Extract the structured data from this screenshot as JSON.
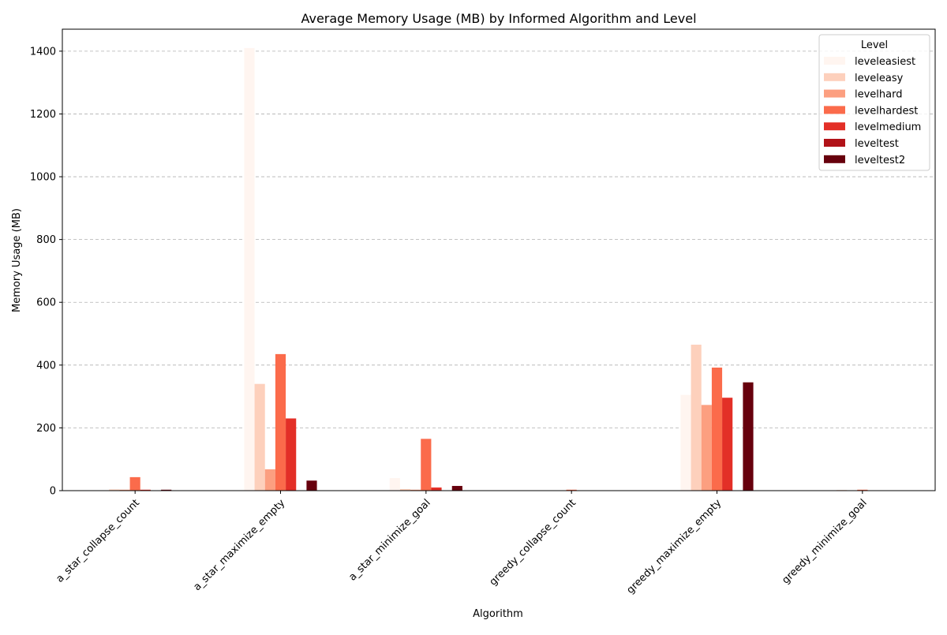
{
  "chart_data": {
    "type": "bar",
    "title": "Average Memory Usage (MB) by Informed Algorithm and Level",
    "xlabel": "Algorithm",
    "ylabel": "Memory Usage (MB)",
    "ylim": [
      0,
      1470
    ],
    "yticks": [
      0,
      200,
      400,
      600,
      800,
      1000,
      1200,
      1400
    ],
    "grid": true,
    "legend_title": "Level",
    "legend_position": "top-right",
    "categories": [
      "a_star_collapse_count",
      "a_star_maximize_empty",
      "a_star_minimize_goal",
      "greedy_collapse_count",
      "greedy_maximize_empty",
      "greedy_minimize_goal"
    ],
    "series": [
      {
        "name": "leveleasiest",
        "color": "#fff5f0",
        "values": [
          1,
          1410,
          40,
          0.5,
          305,
          0.5
        ]
      },
      {
        "name": "leveleasy",
        "color": "#fdd0bc",
        "values": [
          4,
          340,
          5,
          0.5,
          465,
          2
        ]
      },
      {
        "name": "levelhard",
        "color": "#fc9f80",
        "values": [
          3,
          68,
          3,
          0.5,
          273,
          0.5
        ]
      },
      {
        "name": "levelhardest",
        "color": "#fb6b4b",
        "values": [
          43,
          435,
          165,
          3,
          392,
          3
        ]
      },
      {
        "name": "levelmedium",
        "color": "#e32f27",
        "values": [
          3,
          230,
          10,
          0.5,
          296,
          0.5
        ]
      },
      {
        "name": "leveltest",
        "color": "#b11218",
        "values": [
          0,
          0,
          0,
          0,
          0,
          0
        ]
      },
      {
        "name": "leveltest2",
        "color": "#67000d",
        "values": [
          3,
          32,
          15,
          0.5,
          345,
          0.5
        ]
      }
    ]
  }
}
